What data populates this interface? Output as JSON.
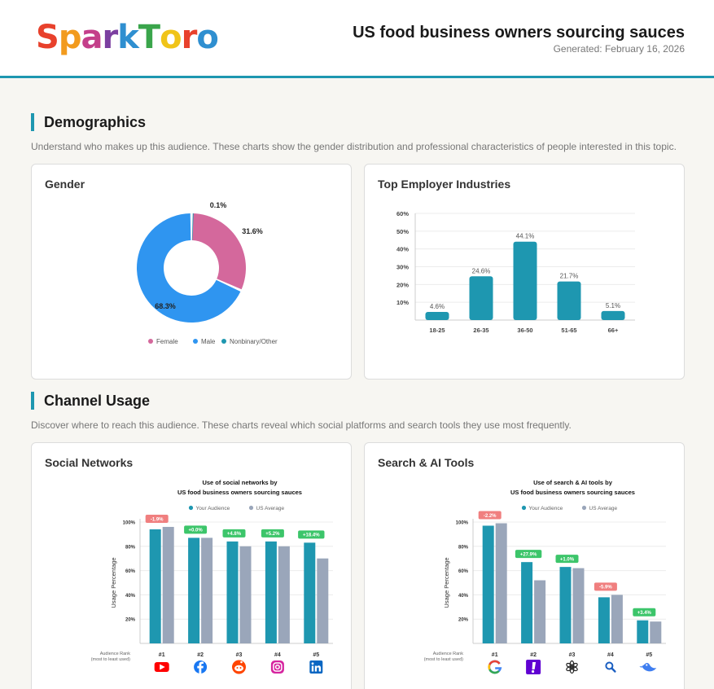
{
  "header": {
    "logo": "SparkToro",
    "logo_colors": [
      "#e8412c",
      "#f29b1e",
      "#c43f8a",
      "#7b3fa0",
      "#2f8fd0",
      "#3aa54b",
      "#f0c419",
      "#e8412c",
      "#2f8fd0"
    ],
    "title": "US food business owners sourcing sauces",
    "generated": "Generated: February 16, 2026"
  },
  "demographics": {
    "heading": "Demographics",
    "description": "Understand who makes up this audience. These charts show the gender distribution and professional characteristics of people interested in this topic."
  },
  "channel_usage": {
    "heading": "Channel Usage",
    "description": "Discover where to reach this audience. These charts reveal which social platforms and search tools they use most frequently."
  },
  "gender_card": {
    "title": "Gender"
  },
  "employer_card": {
    "title": "Top Employer Industries"
  },
  "social_card": {
    "title": "Social Networks"
  },
  "search_card": {
    "title": "Search & AI Tools"
  },
  "colors": {
    "accent": "#1e97b0",
    "female": "#d4689c",
    "male": "#2f95f0",
    "nonbinary": "#1e97b0",
    "us_avg": "#9aa6ba",
    "pos_badge": "#3cc56a",
    "neg_badge": "#f07f7f"
  },
  "chart_data": [
    {
      "type": "pie",
      "labels": [
        "Female",
        "Male",
        "Nonbinary/Other"
      ],
      "values": [
        31.6,
        68.3,
        0.1
      ],
      "value_labels": [
        "31.6%",
        "68.3%",
        "0.1%"
      ],
      "legend": "bottom"
    },
    {
      "type": "bar",
      "categories": [
        "18-25",
        "26-35",
        "36-50",
        "51-65",
        "66+"
      ],
      "values": [
        4.6,
        24.6,
        44.1,
        21.7,
        5.1
      ],
      "value_labels": [
        "4.6%",
        "24.6%",
        "44.1%",
        "21.7%",
        "5.1%"
      ],
      "y_ticks": [
        "10%",
        "20%",
        "30%",
        "40%",
        "50%",
        "60%"
      ],
      "ylim": [
        0,
        60
      ],
      "grid": true
    },
    {
      "type": "bar",
      "title_lines": [
        "Use of social networks by",
        "US food business owners sourcing sauces"
      ],
      "ylabel": "Usage Percentage",
      "series_names": [
        "Your Audience",
        "US Average"
      ],
      "legend": "top",
      "rank_label_lines": [
        "Audience Rank",
        "(most to least used)"
      ],
      "categories": [
        "#1",
        "#2",
        "#3",
        "#4",
        "#5"
      ],
      "icons": [
        "youtube-icon",
        "facebook-icon",
        "reddit-icon",
        "instagram-icon",
        "linkedin-icon"
      ],
      "your_audience": [
        94,
        87,
        84,
        84,
        83
      ],
      "us_average": [
        96,
        87,
        80,
        80,
        70
      ],
      "badges": [
        "-1.9%",
        "+0.0%",
        "+4.8%",
        "+5.2%",
        "+18.4%"
      ],
      "y_ticks": [
        "20%",
        "40%",
        "60%",
        "80%",
        "100%"
      ],
      "ylim": [
        0,
        100
      ]
    },
    {
      "type": "bar",
      "title_lines": [
        "Use of search & AI tools by",
        "US food business owners sourcing sauces"
      ],
      "ylabel": "Usage Percentage",
      "series_names": [
        "Your Audience",
        "US Average"
      ],
      "legend": "top",
      "rank_label_lines": [
        "Audience Rank",
        "(most to least used)"
      ],
      "categories": [
        "#1",
        "#2",
        "#3",
        "#4",
        "#5"
      ],
      "icons": [
        "google-icon",
        "yahoo-icon",
        "chatgpt-icon",
        "bing-search-icon",
        "duckduckgo-icon"
      ],
      "your_audience": [
        97,
        67,
        63,
        38,
        19
      ],
      "us_average": [
        99,
        52,
        62,
        40,
        18
      ],
      "badges": [
        "-2.2%",
        "+27.9%",
        "+1.0%",
        "-5.9%",
        "+3.4%"
      ],
      "y_ticks": [
        "20%",
        "40%",
        "60%",
        "80%",
        "100%"
      ],
      "ylim": [
        0,
        100
      ]
    }
  ]
}
